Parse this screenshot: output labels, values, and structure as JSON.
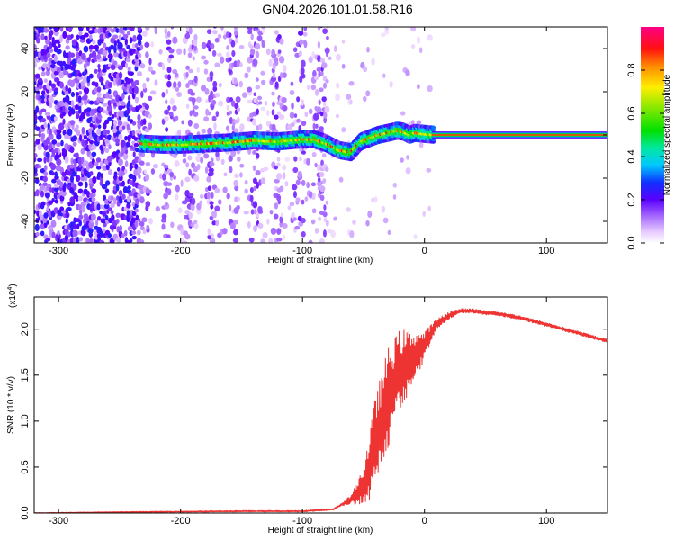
{
  "title": "GN04.2026.101.01.58.R16",
  "colors": {
    "snr_line": "#ee3333",
    "frame": "#000000"
  },
  "chart_data": [
    {
      "type": "heatmap",
      "name": "spectrogram",
      "xlabel": "Height of straight line (km)",
      "ylabel": "Frequency (Hz)",
      "xlim": [
        -320,
        150
      ],
      "ylim": [
        -50,
        50
      ],
      "xticks": [
        -300,
        -200,
        -100,
        0,
        100
      ],
      "yticks": [
        -40,
        -20,
        0,
        20,
        40
      ],
      "ridge": {
        "description": "dominant frequency track",
        "x": [
          -232,
          -215,
          -200,
          -180,
          -160,
          -140,
          -120,
          -100,
          -90,
          -80,
          -70,
          -60,
          -52,
          -45,
          -38,
          -30,
          -22,
          -17,
          -12,
          -8,
          0,
          10,
          150
        ],
        "y": [
          -4,
          -4.5,
          -4.5,
          -4,
          -3.5,
          -2.5,
          -3,
          -2,
          -2,
          -4,
          -7,
          -8,
          -3,
          -1.5,
          0,
          1,
          2,
          1.5,
          0,
          1,
          0.5,
          0,
          0
        ]
      },
      "colorbar": {
        "label": "Normalized spectral amplitude",
        "range": [
          0,
          1
        ],
        "ticks": [
          0.0,
          0.2,
          0.4,
          0.6,
          0.8
        ]
      }
    },
    {
      "type": "line",
      "name": "snr",
      "xlabel": "Height of straight line (km)",
      "ylabel": "SNR (10 * v/v)",
      "scale_label_base": "(x10",
      "scale_label_exp": "4",
      "scale_label_end": ")",
      "xlim": [
        -320,
        150
      ],
      "ylim": [
        0,
        2.35
      ],
      "xticks": [
        -300,
        -200,
        -100,
        0,
        100
      ],
      "yticks": [
        0.0,
        0.5,
        1.0,
        1.5,
        2.0
      ],
      "envelope": {
        "x": [
          -320,
          -250,
          -150,
          -100,
          -75,
          -60,
          -50,
          -45,
          -40,
          -35,
          -30,
          -25,
          -20,
          -15,
          -10,
          -5,
          0,
          5,
          10,
          20,
          30,
          40,
          50,
          60,
          80,
          100,
          120,
          150
        ],
        "y": [
          0.0,
          0.01,
          0.02,
          0.02,
          0.04,
          0.15,
          0.3,
          0.5,
          0.8,
          1.0,
          1.25,
          1.4,
          1.55,
          1.62,
          1.7,
          1.75,
          1.82,
          1.95,
          2.05,
          2.15,
          2.2,
          2.2,
          2.18,
          2.17,
          2.12,
          2.05,
          1.98,
          1.87
        ]
      },
      "oscillation": {
        "x": [
          -320,
          -70,
          -60,
          -50,
          -40,
          -30,
          -20,
          -10,
          0,
          10,
          30,
          150
        ],
        "amp": [
          0.004,
          0.01,
          0.05,
          0.22,
          0.5,
          0.55,
          0.45,
          0.3,
          0.15,
          0.06,
          0.025,
          0.02
        ]
      }
    }
  ]
}
